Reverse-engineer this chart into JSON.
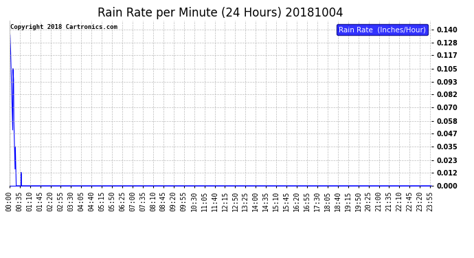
{
  "title": "Rain Rate per Minute (24 Hours) 20181004",
  "copyright_text": "Copyright 2018 Cartronics.com",
  "legend_label": "Rain Rate  (Inches/Hour)",
  "y_ticks": [
    0.0,
    0.012,
    0.023,
    0.035,
    0.047,
    0.058,
    0.07,
    0.082,
    0.093,
    0.105,
    0.117,
    0.128,
    0.14
  ],
  "ylim": [
    0.0,
    0.148
  ],
  "background_color": "#ffffff",
  "plot_background": "#ffffff",
  "grid_color": "#aaaaaa",
  "line_color": "#0000ff",
  "title_fontsize": 12,
  "tick_fontsize": 7,
  "num_minutes": 1440,
  "rain_data": [
    [
      0,
      0.14
    ],
    [
      1,
      0.138
    ],
    [
      2,
      0.135
    ],
    [
      3,
      0.128
    ],
    [
      4,
      0.117
    ],
    [
      5,
      0.105
    ],
    [
      6,
      0.095
    ],
    [
      7,
      0.082
    ],
    [
      8,
      0.07
    ],
    [
      9,
      0.058
    ],
    [
      10,
      0.047
    ],
    [
      11,
      0.04
    ],
    [
      12,
      0.105
    ],
    [
      13,
      0.1
    ],
    [
      14,
      0.095
    ],
    [
      15,
      0.058
    ],
    [
      16,
      0.047
    ],
    [
      17,
      0.035
    ],
    [
      18,
      0.023
    ],
    [
      19,
      0.012
    ],
    [
      20,
      0.035
    ],
    [
      21,
      0.023
    ],
    [
      22,
      0.012
    ],
    [
      23,
      0.0
    ],
    [
      40,
      0.012
    ],
    [
      41,
      0.0
    ]
  ]
}
